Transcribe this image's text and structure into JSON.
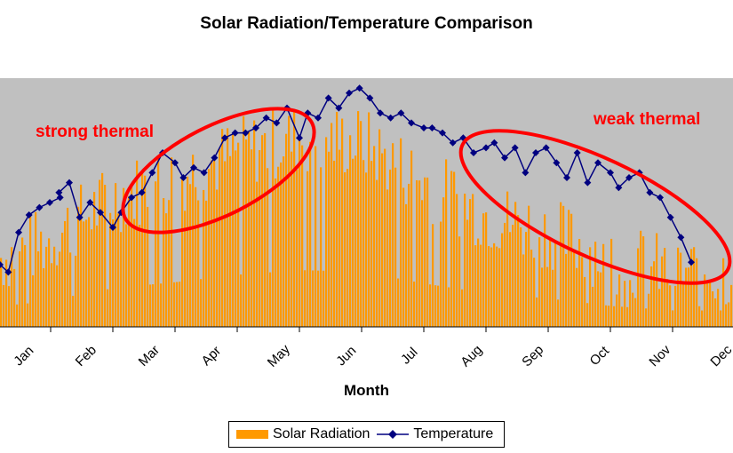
{
  "chart_data": {
    "type": "bar+line",
    "title": "Solar Radiation/Temperature Comparison",
    "xlabel": "Month",
    "ylabel": "",
    "categories": [
      "Jan",
      "Feb",
      "Mar",
      "Apr",
      "May",
      "Jun",
      "Jul",
      "Aug",
      "Sep",
      "Oct",
      "Nov",
      "Dec"
    ],
    "legend_position": "bottom",
    "grid": false,
    "y_scale": "unlabeled, relative 0-100",
    "series": [
      {
        "name": "Solar Radiation",
        "kind": "bar",
        "color": "#FF9900",
        "monthly_typical_level": [
          28,
          36,
          52,
          60,
          70,
          76,
          74,
          58,
          45,
          38,
          28,
          22
        ]
      },
      {
        "name": "Temperature",
        "kind": "line",
        "color": "#000080",
        "marker": "diamond",
        "points": [
          [
            "Jan 1",
            25
          ],
          [
            "Jan 5",
            22
          ],
          [
            "Jan 10",
            38
          ],
          [
            "Jan 15",
            45
          ],
          [
            "Jan 20",
            48
          ],
          [
            "Jan 25",
            50
          ],
          [
            "Jan 30",
            52
          ],
          [
            "Feb 5",
            54
          ],
          [
            "Feb 10",
            58
          ],
          [
            "Feb 15",
            44
          ],
          [
            "Feb 20",
            50
          ],
          [
            "Feb 25",
            46
          ],
          [
            "Mar 1",
            40
          ],
          [
            "Mar 5",
            46
          ],
          [
            "Mar 10",
            52
          ],
          [
            "Mar 15",
            54
          ],
          [
            "Mar 20",
            62
          ],
          [
            "Mar 25",
            70
          ],
          [
            "Mar 31",
            66
          ],
          [
            "Apr 5",
            60
          ],
          [
            "Apr 10",
            64
          ],
          [
            "Apr 15",
            62
          ],
          [
            "Apr 20",
            68
          ],
          [
            "Apr 25",
            76
          ],
          [
            "Apr 30",
            78
          ],
          [
            "May 5",
            78
          ],
          [
            "May 10",
            80
          ],
          [
            "May 15",
            84
          ],
          [
            "May 20",
            82
          ],
          [
            "May 25",
            88
          ],
          [
            "May 31",
            76
          ],
          [
            "Jun 5",
            86
          ],
          [
            "Jun 10",
            84
          ],
          [
            "Jun 15",
            92
          ],
          [
            "Jun 20",
            88
          ],
          [
            "Jun 25",
            94
          ],
          [
            "Jun 30",
            96
          ],
          [
            "Jul 5",
            92
          ],
          [
            "Jul 10",
            86
          ],
          [
            "Jul 15",
            84
          ],
          [
            "Jul 20",
            86
          ],
          [
            "Jul 25",
            82
          ],
          [
            "Jul 31",
            80
          ],
          [
            "Aug 5",
            80
          ],
          [
            "Aug 10",
            78
          ],
          [
            "Aug 15",
            74
          ],
          [
            "Aug 20",
            76
          ],
          [
            "Aug 25",
            70
          ],
          [
            "Aug 31",
            72
          ],
          [
            "Sep 5",
            74
          ],
          [
            "Sep 10",
            68
          ],
          [
            "Sep 15",
            72
          ],
          [
            "Sep 20",
            62
          ],
          [
            "Sep 25",
            70
          ],
          [
            "Sep 30",
            72
          ],
          [
            "Oct 5",
            66
          ],
          [
            "Oct 10",
            60
          ],
          [
            "Oct 15",
            70
          ],
          [
            "Oct 20",
            58
          ],
          [
            "Oct 25",
            66
          ],
          [
            "Oct 31",
            62
          ],
          [
            "Nov 5",
            56
          ],
          [
            "Nov 10",
            60
          ],
          [
            "Nov 15",
            62
          ],
          [
            "Nov 20",
            54
          ],
          [
            "Nov 25",
            52
          ],
          [
            "Nov 30",
            44
          ],
          [
            "Dec 5",
            36
          ],
          [
            "Dec 10",
            26
          ]
        ]
      }
    ],
    "annotations": [
      {
        "text": "strong thermal",
        "color": "#FF0000",
        "shape": "ellipse",
        "span": [
          "Mar",
          "May"
        ]
      },
      {
        "text": "weak thermal",
        "color": "#FF0000",
        "shape": "ellipse",
        "span": [
          "Aug",
          "Dec"
        ]
      }
    ],
    "plot_background": "#C0C0C0"
  }
}
